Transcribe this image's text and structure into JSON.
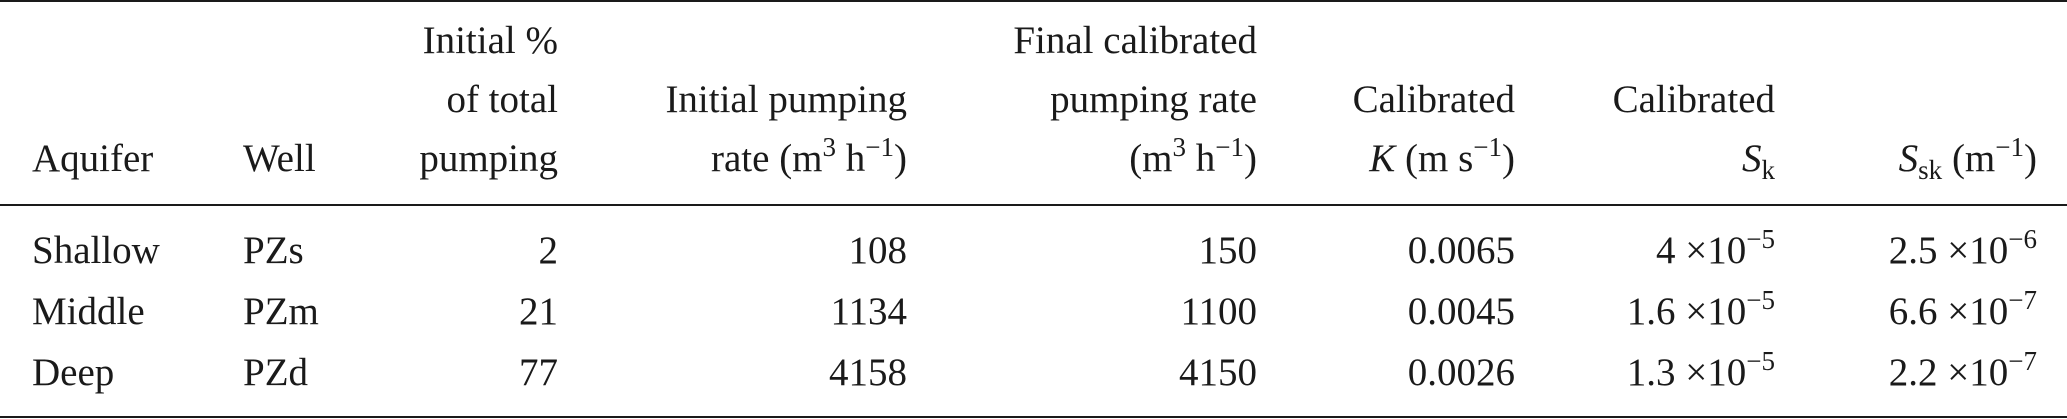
{
  "table": {
    "headers": {
      "aquifer": "Aquifer",
      "well": "Well",
      "initial_pct": {
        "line1": "Initial %",
        "line2": "of total",
        "line3": "pumping"
      },
      "initial_rate": {
        "line1": "Initial pumping",
        "line2_prefix": "rate (m",
        "line2_exp1": "3",
        "line2_mid": " h",
        "line2_exp2": "−1",
        "line2_suffix": ")"
      },
      "final_rate": {
        "line1": "Final calibrated",
        "line2": "pumping rate",
        "line3_prefix": "(m",
        "line3_exp1": "3",
        "line3_mid": " h",
        "line3_exp2": "−1",
        "line3_suffix": ")"
      },
      "cal_k": {
        "line1": "Calibrated",
        "line2_var": "K",
        "line2_prefix": " (m s",
        "line2_exp": "−1",
        "line2_suffix": ")"
      },
      "cal_sk": {
        "line1": "Calibrated",
        "line2_var": "S",
        "line2_sub": "k"
      },
      "ssk": {
        "var": "S",
        "sub": "sk",
        "prefix": " (m",
        "exp": "−1",
        "suffix": ")"
      }
    },
    "rows": [
      {
        "aquifer": "Shallow",
        "well": "PZs",
        "initial_pct": "2",
        "initial_rate": "108",
        "final_rate": "150",
        "k": "0.0065",
        "sk_mant": "4 ×10",
        "sk_exp": "−5",
        "ssk_mant": "2.5 ×10",
        "ssk_exp": "−6"
      },
      {
        "aquifer": "Middle",
        "well": "PZm",
        "initial_pct": "21",
        "initial_rate": "1134",
        "final_rate": "1100",
        "k": "0.0045",
        "sk_mant": "1.6 ×10",
        "sk_exp": "−5",
        "ssk_mant": "6.6 ×10",
        "ssk_exp": "−7"
      },
      {
        "aquifer": "Deep",
        "well": "PZd",
        "initial_pct": "77",
        "initial_rate": "4158",
        "final_rate": "4150",
        "k": "0.0026",
        "sk_mant": "1.3 ×10",
        "sk_exp": "−5",
        "ssk_mant": "2.2 ×10",
        "ssk_exp": "−7"
      }
    ]
  }
}
